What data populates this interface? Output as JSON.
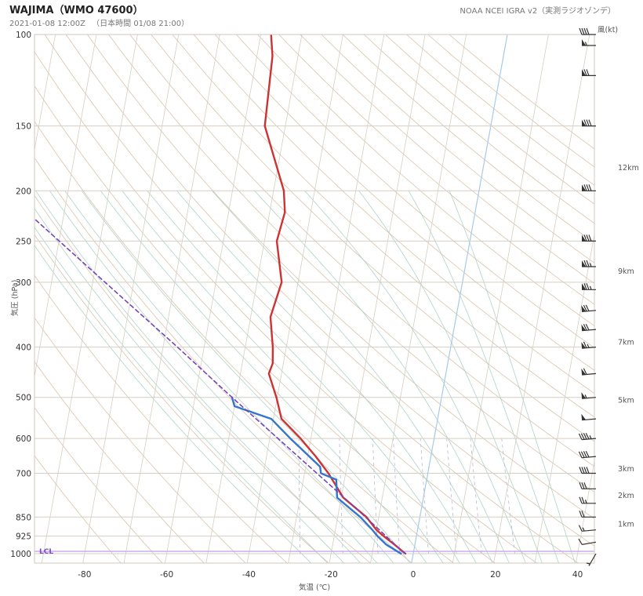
{
  "header": {
    "title": "WAJIMA（WMO 47600）",
    "subtitle": "2021-01-08 12:00Z 　（日本時間 01/08 21:00）",
    "source": "NOAA NCEI IGRA v2（実測ラジオゾンデ）",
    "wind_label": "風(kt)"
  },
  "chart_data": {
    "type": "skew-t",
    "xlabel": "気温 (℃)",
    "ylabel": "気圧 (hPa)",
    "x_ticks": [
      -80,
      -60,
      -40,
      -20,
      0,
      20,
      40
    ],
    "p_ticks": [
      100,
      150,
      200,
      250,
      300,
      400,
      500,
      600,
      700,
      850,
      925,
      1000
    ],
    "p_range": [
      100,
      1030
    ],
    "height_labels": [
      {
        "p": 180,
        "label": "12km"
      },
      {
        "p": 285,
        "label": "9km"
      },
      {
        "p": 390,
        "label": "7km"
      },
      {
        "p": 505,
        "label": "5km"
      },
      {
        "p": 685,
        "label": "3km"
      },
      {
        "p": 770,
        "label": "2km"
      },
      {
        "p": 875,
        "label": "1km"
      }
    ],
    "lcl": {
      "p": 990,
      "label": "LCL"
    },
    "series": [
      {
        "role": "temperature",
        "color": "#cc3333",
        "points": [
          [
            1000,
            -1.9
          ],
          [
            960,
            -5.0
          ],
          [
            925,
            -8.0
          ],
          [
            900,
            -10.0
          ],
          [
            850,
            -13.0
          ],
          [
            780,
            -19.5
          ],
          [
            700,
            -24.2
          ],
          [
            650,
            -28.0
          ],
          [
            600,
            -32.5
          ],
          [
            550,
            -38.0
          ],
          [
            500,
            -40.2
          ],
          [
            450,
            -43.1
          ],
          [
            430,
            -42.6
          ],
          [
            400,
            -43.3
          ],
          [
            350,
            -45.2
          ],
          [
            300,
            -44.0
          ],
          [
            250,
            -47.0
          ],
          [
            220,
            -46.3
          ],
          [
            200,
            -47.5
          ],
          [
            150,
            -55.0
          ],
          [
            110,
            -56.2
          ],
          [
            100,
            -57.5
          ]
        ]
      },
      {
        "role": "dewpoint",
        "color": "#3377cc",
        "points": [
          [
            1000,
            -3.0
          ],
          [
            960,
            -7.0
          ],
          [
            925,
            -9.5
          ],
          [
            900,
            -11.0
          ],
          [
            850,
            -14.5
          ],
          [
            780,
            -21.0
          ],
          [
            720,
            -22.0
          ],
          [
            700,
            -26.0
          ],
          [
            680,
            -26.5
          ],
          [
            600,
            -35.0
          ],
          [
            550,
            -40.5
          ],
          [
            520,
            -50.0
          ],
          [
            500,
            -51.0
          ]
        ]
      },
      {
        "role": "parcel",
        "color": "#7744bb",
        "dashed": true,
        "points": [
          [
            1000,
            -1.9
          ],
          [
            990,
            -2.8
          ],
          [
            900,
            -9.3
          ],
          [
            800,
            -17.5
          ],
          [
            700,
            -27.0
          ],
          [
            600,
            -38.0
          ],
          [
            500,
            -51.0
          ],
          [
            400,
            -66.5
          ],
          [
            300,
            -87.0
          ],
          [
            220,
            -109.0
          ]
        ]
      }
    ],
    "wind_barbs": [
      {
        "p": 1000,
        "speed": 5,
        "dir": 210
      },
      {
        "p": 950,
        "speed": 10,
        "dir": 260
      },
      {
        "p": 900,
        "speed": 15,
        "dir": 265
      },
      {
        "p": 850,
        "speed": 20,
        "dir": 270
      },
      {
        "p": 800,
        "speed": 25,
        "dir": 270
      },
      {
        "p": 750,
        "speed": 30,
        "dir": 270
      },
      {
        "p": 700,
        "speed": 40,
        "dir": 270
      },
      {
        "p": 650,
        "speed": 40,
        "dir": 265
      },
      {
        "p": 600,
        "speed": 45,
        "dir": 265
      },
      {
        "p": 550,
        "speed": 50,
        "dir": 265
      },
      {
        "p": 500,
        "speed": 55,
        "dir": 265
      },
      {
        "p": 450,
        "speed": 60,
        "dir": 265
      },
      {
        "p": 400,
        "speed": 65,
        "dir": 265
      },
      {
        "p": 370,
        "speed": 70,
        "dir": 265
      },
      {
        "p": 340,
        "speed": 70,
        "dir": 265
      },
      {
        "p": 310,
        "speed": 75,
        "dir": 270
      },
      {
        "p": 280,
        "speed": 75,
        "dir": 270
      },
      {
        "p": 250,
        "speed": 80,
        "dir": 270
      },
      {
        "p": 200,
        "speed": 80,
        "dir": 270
      },
      {
        "p": 150,
        "speed": 80,
        "dir": 270
      },
      {
        "p": 120,
        "speed": 70,
        "dir": 270
      },
      {
        "p": 105,
        "speed": 55,
        "dir": 270
      },
      {
        "p": 100,
        "speed": 40,
        "dir": 270
      }
    ],
    "colors": {
      "isobar": "#d5cfc2",
      "isotherm": "#d5cfc2",
      "zero_isotherm": "#a9c9ea",
      "dry_adiabat": "#d2b9a0",
      "moist_adiabat": "#a8cdc4",
      "mixing_ratio": "#b8b8d8",
      "lcl_line": "#c8a6f0"
    }
  }
}
